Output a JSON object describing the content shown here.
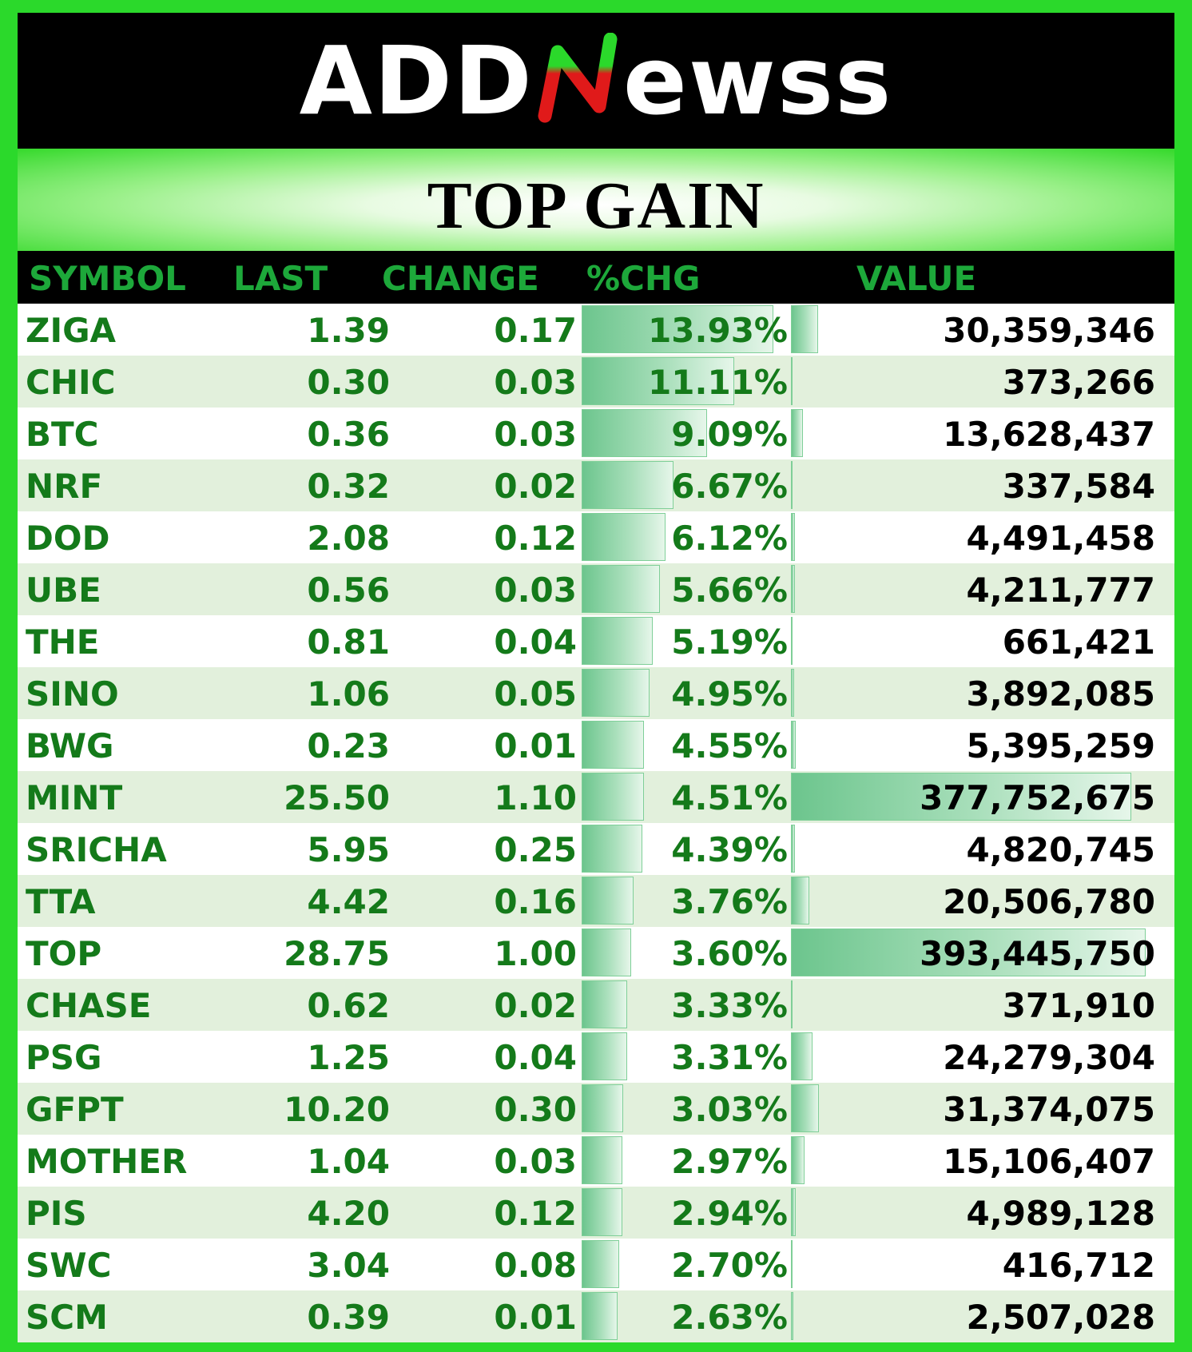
{
  "brand": {
    "prefix": "ADD",
    "suffix": "ewss",
    "mark_letter": "N"
  },
  "title": "TOP GAIN",
  "columns": {
    "symbol": "SYMBOL",
    "last": "LAST",
    "change": "CHANGE",
    "pct_change": "%CHG",
    "value": "VALUE"
  },
  "colors": {
    "background": "#2bd92b",
    "header_text": "#1da83a",
    "row_text": "#147a1a",
    "row_alt": "#e2f0dc"
  },
  "max_pct": 13.93,
  "max_value": 393445750,
  "rows": [
    {
      "symbol": "ZIGA",
      "last": "1.39",
      "change": "0.17",
      "pct": "13.93%",
      "value": "30,359,346",
      "pct_num": 13.93,
      "value_num": 30359346
    },
    {
      "symbol": "CHIC",
      "last": "0.30",
      "change": "0.03",
      "pct": "11.11%",
      "value": "373,266",
      "pct_num": 11.11,
      "value_num": 373266
    },
    {
      "symbol": "BTC",
      "last": "0.36",
      "change": "0.03",
      "pct": "9.09%",
      "value": "13,628,437",
      "pct_num": 9.09,
      "value_num": 13628437
    },
    {
      "symbol": "NRF",
      "last": "0.32",
      "change": "0.02",
      "pct": "6.67%",
      "value": "337,584",
      "pct_num": 6.67,
      "value_num": 337584
    },
    {
      "symbol": "DOD",
      "last": "2.08",
      "change": "0.12",
      "pct": "6.12%",
      "value": "4,491,458",
      "pct_num": 6.12,
      "value_num": 4491458
    },
    {
      "symbol": "UBE",
      "last": "0.56",
      "change": "0.03",
      "pct": "5.66%",
      "value": "4,211,777",
      "pct_num": 5.66,
      "value_num": 4211777
    },
    {
      "symbol": "THE",
      "last": "0.81",
      "change": "0.04",
      "pct": "5.19%",
      "value": "661,421",
      "pct_num": 5.19,
      "value_num": 661421
    },
    {
      "symbol": "SINO",
      "last": "1.06",
      "change": "0.05",
      "pct": "4.95%",
      "value": "3,892,085",
      "pct_num": 4.95,
      "value_num": 3892085
    },
    {
      "symbol": "BWG",
      "last": "0.23",
      "change": "0.01",
      "pct": "4.55%",
      "value": "5,395,259",
      "pct_num": 4.55,
      "value_num": 5395259
    },
    {
      "symbol": "MINT",
      "last": "25.50",
      "change": "1.10",
      "pct": "4.51%",
      "value": "377,752,675",
      "pct_num": 4.51,
      "value_num": 377752675
    },
    {
      "symbol": "SRICHA",
      "last": "5.95",
      "change": "0.25",
      "pct": "4.39%",
      "value": "4,820,745",
      "pct_num": 4.39,
      "value_num": 4820745
    },
    {
      "symbol": "TTA",
      "last": "4.42",
      "change": "0.16",
      "pct": "3.76%",
      "value": "20,506,780",
      "pct_num": 3.76,
      "value_num": 20506780
    },
    {
      "symbol": "TOP",
      "last": "28.75",
      "change": "1.00",
      "pct": "3.60%",
      "value": "393,445,750",
      "pct_num": 3.6,
      "value_num": 393445750
    },
    {
      "symbol": "CHASE",
      "last": "0.62",
      "change": "0.02",
      "pct": "3.33%",
      "value": "371,910",
      "pct_num": 3.33,
      "value_num": 371910
    },
    {
      "symbol": "PSG",
      "last": "1.25",
      "change": "0.04",
      "pct": "3.31%",
      "value": "24,279,304",
      "pct_num": 3.31,
      "value_num": 24279304
    },
    {
      "symbol": "GFPT",
      "last": "10.20",
      "change": "0.30",
      "pct": "3.03%",
      "value": "31,374,075",
      "pct_num": 3.03,
      "value_num": 31374075
    },
    {
      "symbol": "MOTHER",
      "last": "1.04",
      "change": "0.03",
      "pct": "2.97%",
      "value": "15,106,407",
      "pct_num": 2.97,
      "value_num": 15106407
    },
    {
      "symbol": "PIS",
      "last": "4.20",
      "change": "0.12",
      "pct": "2.94%",
      "value": "4,989,128",
      "pct_num": 2.94,
      "value_num": 4989128
    },
    {
      "symbol": "SWC",
      "last": "3.04",
      "change": "0.08",
      "pct": "2.70%",
      "value": "416,712",
      "pct_num": 2.7,
      "value_num": 416712
    },
    {
      "symbol": "SCM",
      "last": "0.39",
      "change": "0.01",
      "pct": "2.63%",
      "value": "2,507,028",
      "pct_num": 2.63,
      "value_num": 2507028
    }
  ]
}
